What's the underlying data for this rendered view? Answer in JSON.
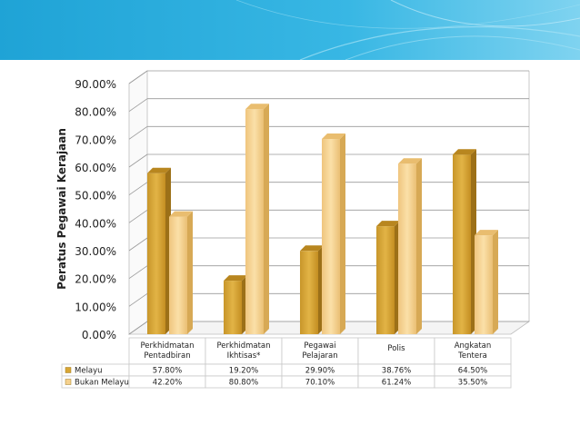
{
  "chart_data": {
    "type": "bar",
    "ylabel": "Peratus Pegawai Kerajaan",
    "ylim": [
      0,
      90
    ],
    "yticks": [
      "0.00%",
      "10.00%",
      "20.00%",
      "30.00%",
      "40.00%",
      "50.00%",
      "60.00%",
      "70.00%",
      "80.00%",
      "90.00%"
    ],
    "categories": [
      [
        "Perkhidmatan",
        "Pentadbiran"
      ],
      [
        "Perkhidmatan",
        "Ikhtisas*"
      ],
      [
        "Pegawai",
        "Pelajaran"
      ],
      [
        "Polis"
      ],
      [
        "Angkatan",
        "Tentera"
      ]
    ],
    "series": [
      {
        "name": "Melayu",
        "color": "#D8A634",
        "values": [
          57.8,
          19.2,
          29.9,
          38.76,
          64.5
        ],
        "labels": [
          "57.80%",
          "19.20%",
          "29.90%",
          "38.76%",
          "64.50%"
        ]
      },
      {
        "name": "Bukan Melayu",
        "color": "#F5D18E",
        "values": [
          42.2,
          80.8,
          70.1,
          61.24,
          35.5
        ],
        "labels": [
          "42.20%",
          "80.80%",
          "70.10%",
          "61.24%",
          "35.50%"
        ]
      }
    ],
    "legend": "table-bottom",
    "grid": true
  }
}
